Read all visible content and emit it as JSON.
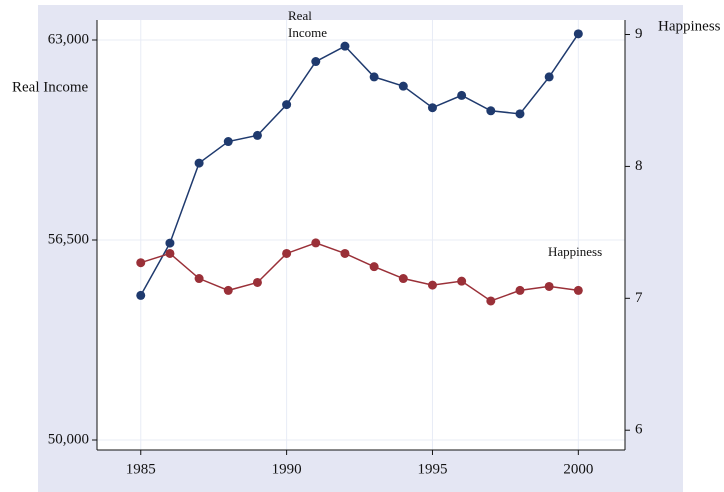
{
  "chart_data": {
    "type": "line",
    "annotations": [
      {
        "lines": [
          "Real",
          "Income"
        ],
        "series": 0
      },
      {
        "lines": [
          "Happiness"
        ],
        "series": 1
      }
    ],
    "ylabel": "Real Income",
    "y2label": "Happiness",
    "x": [
      1985,
      1986,
      1987,
      1988,
      1989,
      1990,
      1991,
      1992,
      1993,
      1994,
      1995,
      1996,
      1997,
      1998,
      1999,
      2000
    ],
    "series": [
      {
        "name": "Real Income",
        "color": "#1f3a6e",
        "values": [
          54700,
          56400,
          59000,
          59700,
          59900,
          60900,
          62300,
          62800,
          61800,
          61500,
          60800,
          61200,
          60700,
          60600,
          61800,
          63200
        ]
      },
      {
        "name": "Happiness",
        "color": "#9a3038",
        "axis": "y2",
        "values": [
          7.27,
          7.34,
          7.15,
          7.06,
          7.12,
          7.34,
          7.42,
          7.34,
          7.24,
          7.15,
          7.1,
          7.13,
          6.98,
          7.06,
          7.09,
          7.06
        ]
      }
    ],
    "xlim": [
      1983.5,
      2001.6
    ],
    "xticks": [
      1985,
      1990,
      1995,
      2000
    ],
    "ylim": [
      49675,
      63650
    ],
    "yticks": [
      {
        "value": 50000,
        "label": "50,000"
      },
      {
        "value": 56500,
        "label": "56,500"
      },
      {
        "value": 63000,
        "label": "63,000"
      }
    ],
    "y2lim": [
      5.85,
      9.11
    ],
    "y2ticks": [
      6,
      7,
      8,
      9
    ],
    "grid": true
  }
}
